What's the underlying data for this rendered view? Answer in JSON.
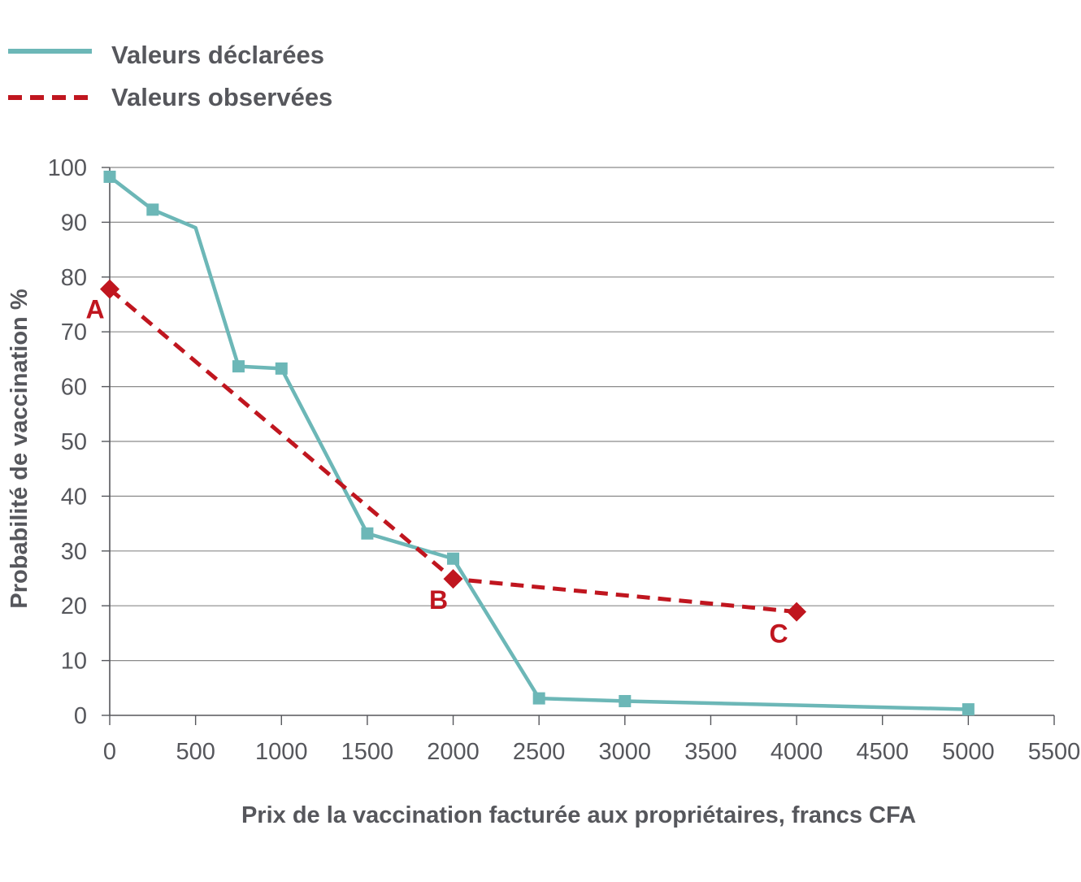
{
  "chart_data": {
    "type": "line",
    "xlabel": "Prix de la vaccination facturée aux propriétaires, francs CFA",
    "ylabel": "Probabilité de vaccination %",
    "xlim": [
      0,
      5500
    ],
    "ylim": [
      0,
      100
    ],
    "x_ticks": [
      "0",
      "500",
      "1000",
      "1500",
      "2000",
      "2500",
      "3000",
      "3500",
      "4000",
      "4500",
      "5000",
      "5500"
    ],
    "y_ticks": [
      "0",
      "10",
      "20",
      "30",
      "40",
      "50",
      "60",
      "70",
      "80",
      "90",
      "100"
    ],
    "grid": "horizontal",
    "legend_position": "top-left",
    "series": [
      {
        "name": "Valeurs déclarées",
        "color": "#6cb7b7",
        "line_style": "solid",
        "marker": "square",
        "points": [
          {
            "x": 0,
            "y": 98.3,
            "marker": true
          },
          {
            "x": 250,
            "y": 92.3,
            "marker": true
          },
          {
            "x": 500,
            "y": 89,
            "marker": false
          },
          {
            "x": 750,
            "y": 63.7,
            "marker": true
          },
          {
            "x": 1000,
            "y": 63.3,
            "marker": true
          },
          {
            "x": 1500,
            "y": 33.2,
            "marker": true
          },
          {
            "x": 2000,
            "y": 28.6,
            "marker": true
          },
          {
            "x": 2500,
            "y": 3.1,
            "marker": true
          },
          {
            "x": 3000,
            "y": 2.6,
            "marker": true
          },
          {
            "x": 5000,
            "y": 1.1,
            "marker": true
          }
        ]
      },
      {
        "name": "Valeurs observées",
        "color": "#c0161f",
        "line_style": "dashed",
        "marker": "diamond",
        "points": [
          {
            "x": 0,
            "y": 77.8,
            "label": "A"
          },
          {
            "x": 2000,
            "y": 24.9,
            "label": "B"
          },
          {
            "x": 4000,
            "y": 18.9,
            "label": "C"
          }
        ]
      }
    ]
  }
}
